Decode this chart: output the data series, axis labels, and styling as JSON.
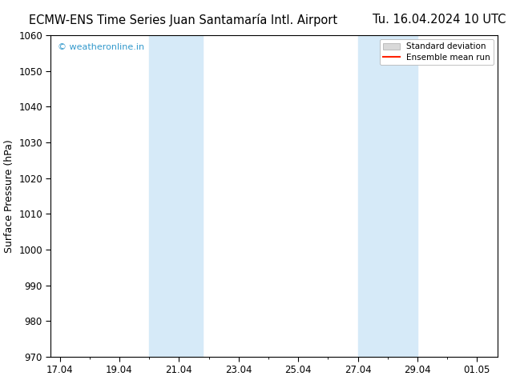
{
  "title_left": "ECMW-ENS Time Series Juan Santamaría Intl. Airport",
  "title_right": "Tu. 16.04.2024 10 UTC",
  "ylabel": "Surface Pressure (hPa)",
  "ylim": [
    970,
    1060
  ],
  "yticks": [
    970,
    980,
    990,
    1000,
    1010,
    1020,
    1030,
    1040,
    1050,
    1060
  ],
  "xtick_labels": [
    "17.04",
    "19.04",
    "21.04",
    "23.04",
    "25.04",
    "27.04",
    "29.04",
    "01.05"
  ],
  "xtick_positions": [
    0,
    2,
    4,
    6,
    8,
    10,
    12,
    14
  ],
  "xlim": [
    -0.3,
    14.7
  ],
  "shaded_bands": [
    {
      "x_start": 3.0,
      "x_end": 4.8
    },
    {
      "x_start": 10.0,
      "x_end": 12.0
    }
  ],
  "shade_color": "#d6eaf8",
  "watermark": "© weatheronline.in",
  "watermark_color": "#3399cc",
  "legend_sd_color": "#d9d9d9",
  "legend_mean_color": "#ff2200",
  "background_color": "#ffffff",
  "plot_bg_color": "#ffffff",
  "title_fontsize": 10.5,
  "ylabel_fontsize": 9,
  "tick_fontsize": 8.5,
  "watermark_fontsize": 8,
  "legend_fontsize": 7.5
}
